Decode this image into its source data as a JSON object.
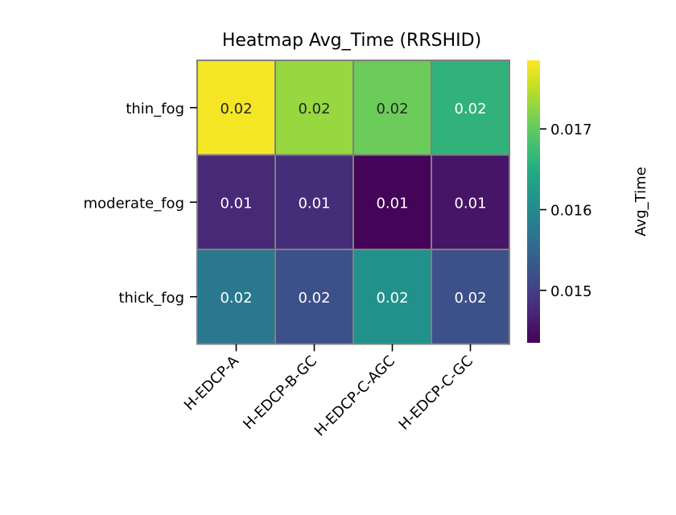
{
  "chart_data": {
    "type": "heatmap",
    "title": "Heatmap Avg_Time (RRSHID)",
    "x_categories": [
      "H-EDCP-A",
      "H-EDCP-B-GC",
      "H-EDCP-C-AGC",
      "H-EDCP-C-GC"
    ],
    "y_categories": [
      "thin_fog",
      "moderate_fog",
      "thick_fog"
    ],
    "values": [
      [
        0.0178,
        0.0173,
        0.01705,
        0.0166
      ],
      [
        0.01475,
        0.0148,
        0.01438,
        0.01455
      ],
      [
        0.01575,
        0.0152,
        0.0161,
        0.0152
      ]
    ],
    "cell_labels": [
      [
        "0.02",
        "0.02",
        "0.02",
        "0.02"
      ],
      [
        "0.01",
        "0.01",
        "0.01",
        "0.01"
      ],
      [
        "0.02",
        "0.02",
        "0.02",
        "0.02"
      ]
    ],
    "colorbar": {
      "label": "Avg_Time",
      "colormap": "viridis",
      "range": [
        0.01435,
        0.01785
      ],
      "ticks": [
        0.015,
        0.016,
        0.017
      ],
      "tick_labels": [
        "0.015",
        "0.016",
        "0.017"
      ]
    }
  }
}
